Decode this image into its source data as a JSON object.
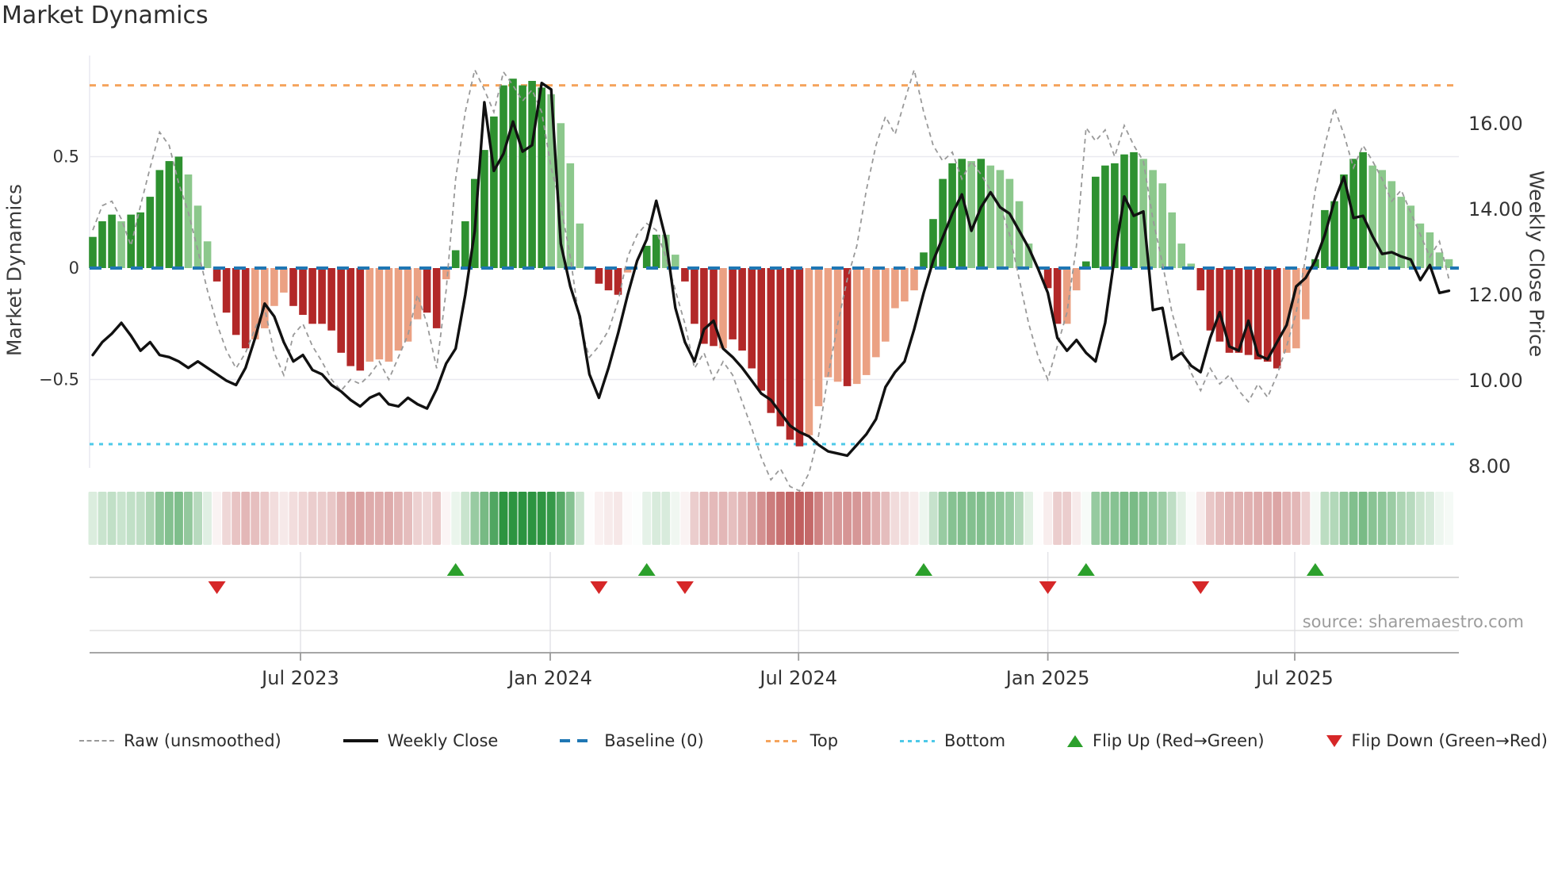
{
  "title": "Market Dynamics",
  "source_text": "source: sharemaestro.com",
  "axes": {
    "left_label": "Market Dynamics",
    "right_label": "Weekly Close Price",
    "left_ticks": [
      {
        "value": 0.5,
        "label": "0.5"
      },
      {
        "value": 0,
        "label": "0"
      },
      {
        "value": -0.5,
        "label": "−0.5"
      }
    ],
    "right_ticks": [
      {
        "value": 16,
        "label": "16.00"
      },
      {
        "value": 14,
        "label": "14.00"
      },
      {
        "value": 12,
        "label": "12.00"
      },
      {
        "value": 10,
        "label": "10.00"
      },
      {
        "value": 8,
        "label": "8.00"
      }
    ],
    "x_ticks": [
      {
        "week": 21.75,
        "label": "Jul 2023"
      },
      {
        "week": 47.9,
        "label": "Jan 2024"
      },
      {
        "week": 73.9,
        "label": "Jul 2024"
      },
      {
        "week": 100.0,
        "label": "Jan 2025"
      },
      {
        "week": 125.85,
        "label": "Jul 2025"
      }
    ]
  },
  "legend": {
    "items": [
      {
        "key": "raw",
        "label": "Raw (unsmoothed)"
      },
      {
        "key": "close",
        "label": "Weekly Close"
      },
      {
        "key": "baseline",
        "label": "Baseline (0)"
      },
      {
        "key": "top",
        "label": "Top"
      },
      {
        "key": "bottom",
        "label": "Bottom"
      },
      {
        "key": "flip_up",
        "label": "Flip Up (Red→Green)"
      },
      {
        "key": "flip_down",
        "label": "Flip Down (Green→Red)"
      }
    ]
  },
  "colors": {
    "bar_green_dark": "#2e9130",
    "bar_green_light": "#8cc88c",
    "bar_red_dark": "#b22828",
    "bar_red_light": "#eba183",
    "price_line": "#111111",
    "raw_line": "#999999",
    "baseline_blue": "#1f77b4",
    "top_orange": "#f5a45d",
    "bottom_cyan": "#4ec9e8",
    "grid": "#e9e9f0",
    "axis_line": "#9a9a9a",
    "marker_up_green": "#2ca02c",
    "marker_down_red": "#d62728",
    "strip_green_base": "#2c9440",
    "strip_red_base": "#bf5b5b",
    "tick_text": "#333333",
    "source_gray": "#9c9c9c"
  },
  "chart_data": {
    "type": "bar",
    "title": "Market Dynamics",
    "x_mode": "weekly",
    "x_range_note": "weekly points from ~Feb 2023 to ~Nov 2025",
    "n_weeks": 143,
    "ylim_left": [
      -0.9,
      0.95
    ],
    "ylim_right": [
      8.0,
      17.6
    ],
    "baseline": 0,
    "top_threshold": 0.82,
    "bottom_threshold": -0.79,
    "flip_up_weeks": [
      38,
      58,
      87,
      104,
      128
    ],
    "flip_down_weeks": [
      13,
      53,
      62,
      100,
      116
    ],
    "series": [
      {
        "name": "Market Dynamics (smoothed oscillator bars)",
        "type": "bar",
        "axis": "left",
        "values": [
          0.14,
          0.21,
          0.24,
          0.21,
          0.24,
          0.25,
          0.32,
          0.44,
          0.48,
          0.5,
          0.42,
          0.28,
          0.12,
          -0.06,
          -0.2,
          -0.3,
          -0.36,
          -0.32,
          -0.27,
          -0.17,
          -0.11,
          -0.17,
          -0.21,
          -0.25,
          -0.25,
          -0.28,
          -0.38,
          -0.44,
          -0.46,
          -0.42,
          -0.41,
          -0.42,
          -0.37,
          -0.33,
          -0.23,
          -0.2,
          -0.27,
          -0.05,
          0.08,
          0.21,
          0.4,
          0.53,
          0.68,
          0.82,
          0.85,
          0.82,
          0.84,
          0.81,
          0.78,
          0.65,
          0.47,
          0.2,
          -0.01,
          -0.07,
          -0.1,
          -0.12,
          -0.02,
          0.01,
          0.1,
          0.15,
          0.15,
          0.06,
          -0.06,
          -0.25,
          -0.34,
          -0.35,
          -0.36,
          -0.32,
          -0.37,
          -0.45,
          -0.55,
          -0.65,
          -0.71,
          -0.77,
          -0.8,
          -0.75,
          -0.62,
          -0.49,
          -0.51,
          -0.53,
          -0.52,
          -0.48,
          -0.4,
          -0.33,
          -0.18,
          -0.15,
          -0.1,
          0.07,
          0.22,
          0.4,
          0.47,
          0.49,
          0.48,
          0.49,
          0.46,
          0.44,
          0.4,
          0.3,
          0.11,
          -0.01,
          -0.09,
          -0.25,
          -0.25,
          -0.1,
          0.03,
          0.41,
          0.46,
          0.47,
          0.51,
          0.52,
          0.49,
          0.44,
          0.38,
          0.25,
          0.11,
          0.02,
          -0.1,
          -0.28,
          -0.33,
          -0.38,
          -0.38,
          -0.39,
          -0.41,
          -0.42,
          -0.45,
          -0.38,
          -0.36,
          -0.23,
          0.04,
          0.26,
          0.3,
          0.42,
          0.49,
          0.52,
          0.46,
          0.44,
          0.39,
          0.32,
          0.28,
          0.2,
          0.16,
          0.07,
          0.04
        ],
        "shade_segments": [
          "ddd",
          "l",
          "dddddd",
          "lll",
          "dddd",
          "llll",
          "dddddddd",
          "llllll",
          "dd",
          "l",
          "dddddddddd",
          "llll",
          "dddd",
          "l",
          "ddd",
          "ll",
          "dddd",
          "l",
          "dddddddd",
          "llll",
          "d",
          "lllllll",
          "ddddd",
          "l",
          "d",
          "lllll",
          "ddd",
          "ll",
          "dddddd",
          "llllll",
          "ddddddddd",
          "lll",
          "dddddd",
          "lllllllll"
        ]
      },
      {
        "name": "Raw (unsmoothed)",
        "type": "line",
        "style": "dashed",
        "axis": "left",
        "values": [
          0.17,
          0.28,
          0.3,
          0.22,
          0.1,
          0.28,
          0.45,
          0.61,
          0.55,
          0.38,
          0.25,
          0.08,
          -0.1,
          -0.25,
          -0.37,
          -0.45,
          -0.38,
          -0.27,
          -0.18,
          -0.38,
          -0.48,
          -0.3,
          -0.25,
          -0.35,
          -0.42,
          -0.5,
          -0.55,
          -0.5,
          -0.52,
          -0.48,
          -0.42,
          -0.5,
          -0.4,
          -0.3,
          -0.12,
          -0.25,
          -0.45,
          -0.1,
          0.4,
          0.7,
          0.89,
          0.8,
          0.7,
          0.88,
          0.82,
          0.75,
          0.8,
          0.7,
          0.45,
          0.28,
          0.05,
          -0.25,
          -0.4,
          -0.35,
          -0.28,
          -0.15,
          0.05,
          0.15,
          0.2,
          0.17,
          0.05,
          -0.1,
          -0.25,
          -0.45,
          -0.38,
          -0.5,
          -0.42,
          -0.48,
          -0.6,
          -0.72,
          -0.85,
          -0.95,
          -0.9,
          -0.98,
          -1.0,
          -0.92,
          -0.75,
          -0.48,
          -0.25,
          -0.05,
          0.1,
          0.35,
          0.55,
          0.68,
          0.6,
          0.75,
          0.89,
          0.7,
          0.55,
          0.48,
          0.52,
          0.4,
          0.48,
          0.42,
          0.35,
          0.28,
          0.15,
          -0.05,
          -0.25,
          -0.4,
          -0.5,
          -0.35,
          -0.2,
          0.1,
          0.63,
          0.57,
          0.62,
          0.5,
          0.64,
          0.55,
          0.48,
          0.22,
          0.02,
          -0.2,
          -0.35,
          -0.47,
          -0.55,
          -0.45,
          -0.52,
          -0.48,
          -0.55,
          -0.6,
          -0.52,
          -0.58,
          -0.48,
          -0.35,
          -0.2,
          0.05,
          0.35,
          0.55,
          0.72,
          0.6,
          0.45,
          0.55,
          0.48,
          0.4,
          0.3,
          0.35,
          0.25,
          0.15,
          0.05,
          0.12,
          -0.05
        ]
      },
      {
        "name": "Weekly Close",
        "type": "line",
        "style": "solid",
        "axis": "right",
        "values": [
          10.6,
          10.9,
          11.1,
          11.35,
          11.05,
          10.7,
          10.9,
          10.6,
          10.55,
          10.45,
          10.3,
          10.45,
          10.3,
          10.15,
          10.0,
          9.9,
          10.3,
          11.0,
          11.8,
          11.5,
          10.9,
          10.45,
          10.6,
          10.25,
          10.15,
          9.9,
          9.75,
          9.55,
          9.4,
          9.6,
          9.7,
          9.45,
          9.4,
          9.6,
          9.45,
          9.35,
          9.8,
          10.4,
          10.75,
          12.0,
          13.5,
          16.5,
          14.9,
          15.3,
          16.05,
          15.35,
          15.5,
          16.95,
          16.8,
          13.2,
          12.2,
          11.5,
          10.15,
          9.6,
          10.3,
          11.1,
          12.0,
          12.8,
          13.3,
          14.2,
          13.3,
          11.7,
          10.9,
          10.45,
          11.2,
          11.4,
          10.75,
          10.55,
          10.3,
          10.0,
          9.7,
          9.55,
          9.25,
          8.95,
          8.8,
          8.7,
          8.5,
          8.35,
          8.3,
          8.25,
          8.5,
          8.75,
          9.1,
          9.85,
          10.2,
          10.45,
          11.2,
          12.05,
          12.8,
          13.35,
          13.9,
          14.35,
          13.5,
          14.05,
          14.4,
          14.05,
          13.9,
          13.5,
          13.1,
          12.6,
          12.05,
          11.0,
          10.7,
          10.95,
          10.65,
          10.45,
          11.35,
          12.9,
          14.3,
          13.85,
          13.95,
          11.65,
          11.7,
          10.5,
          10.65,
          10.35,
          10.2,
          11.0,
          11.6,
          10.8,
          10.7,
          11.4,
          10.6,
          10.5,
          10.9,
          11.3,
          12.2,
          12.4,
          12.8,
          13.4,
          14.2,
          14.76,
          13.8,
          13.85,
          13.37,
          12.96,
          13.0,
          12.9,
          12.83,
          12.35,
          12.7,
          12.05,
          12.1
        ]
      }
    ],
    "heatmap_strip": {
      "derived_from": "bar values",
      "colormap": "white to green for positive, white to dusty red for negative, intensity proportional to |value|"
    }
  }
}
